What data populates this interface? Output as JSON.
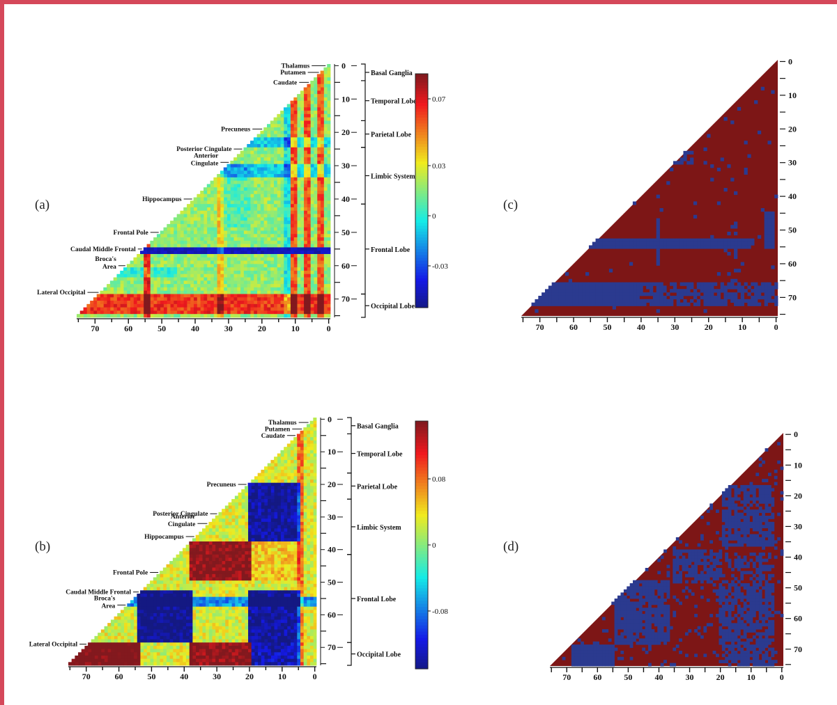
{
  "chart_data": [
    {
      "type": "heatmap",
      "panel_label": "(a)",
      "axis_ticks": [
        "70",
        "60",
        "50",
        "40",
        "30",
        "20",
        "10",
        "0"
      ],
      "row_ticks": [
        "0",
        "10",
        "20",
        "30",
        "40",
        "50",
        "60",
        "70"
      ],
      "region_labels": [
        "Thalamus",
        "Putamen",
        "Caudate",
        "Precuneus",
        "Posterior Cingulate",
        "Anterior Cingulate",
        "Hippocampus",
        "Frontal Pole",
        "Caudal Middle Frontal",
        "Broca's Area",
        "Lateral Occipital"
      ],
      "lobe_groups": [
        "Basal Ganglia",
        "Temporal Lobe",
        "Parietal Lobe",
        "Limbic System",
        "Frontal Lobe",
        "Occipital Lobe"
      ],
      "colorbar_ticks": [
        "0.07",
        "0.03",
        "0",
        "-0.03"
      ],
      "colorbar_values": [
        0.07,
        0.03,
        0,
        -0.03
      ],
      "value_range": [
        -0.055,
        0.085
      ]
    },
    {
      "type": "heatmap",
      "panel_label": "(b)",
      "axis_ticks": [
        "70",
        "60",
        "50",
        "40",
        "30",
        "20",
        "10",
        "0"
      ],
      "row_ticks": [
        "0",
        "10",
        "20",
        "30",
        "40",
        "50",
        "60",
        "70"
      ],
      "region_labels": [
        "Thalamus",
        "Putamen",
        "Caudate",
        "Precuneus",
        "Posterior Cingulate",
        "Anterior Cingulate",
        "Hippocampus",
        "Frontal Pole",
        "Caudal Middle Frontal",
        "Broca's Area",
        "Lateral Occipital"
      ],
      "lobe_groups": [
        "Basal Ganglia",
        "Temporal Lobe",
        "Parietal Lobe",
        "Limbic System",
        "Frontal Lobe",
        "Occipital Lobe"
      ],
      "colorbar_ticks": [
        "0.08",
        "0",
        "-0.08"
      ],
      "colorbar_values": [
        0.08,
        0,
        -0.08
      ],
      "value_range": [
        -0.15,
        0.15
      ]
    },
    {
      "type": "heatmap",
      "panel_label": "(c)",
      "axis_ticks": [
        "70",
        "60",
        "50",
        "40",
        "30",
        "20",
        "10",
        "0"
      ],
      "row_ticks": [
        "0",
        "10",
        "20",
        "30",
        "40",
        "50",
        "60",
        "70"
      ]
    },
    {
      "type": "heatmap",
      "panel_label": "(d)",
      "axis_ticks": [
        "70",
        "60",
        "50",
        "40",
        "30",
        "20",
        "10",
        "0"
      ],
      "row_ticks": [
        "0",
        "10",
        "20",
        "30",
        "40",
        "50",
        "60",
        "70"
      ]
    }
  ],
  "colors": {
    "binary_high": "#7d1616",
    "binary_low": "#2b3a8f",
    "frame": "#d5485a"
  }
}
